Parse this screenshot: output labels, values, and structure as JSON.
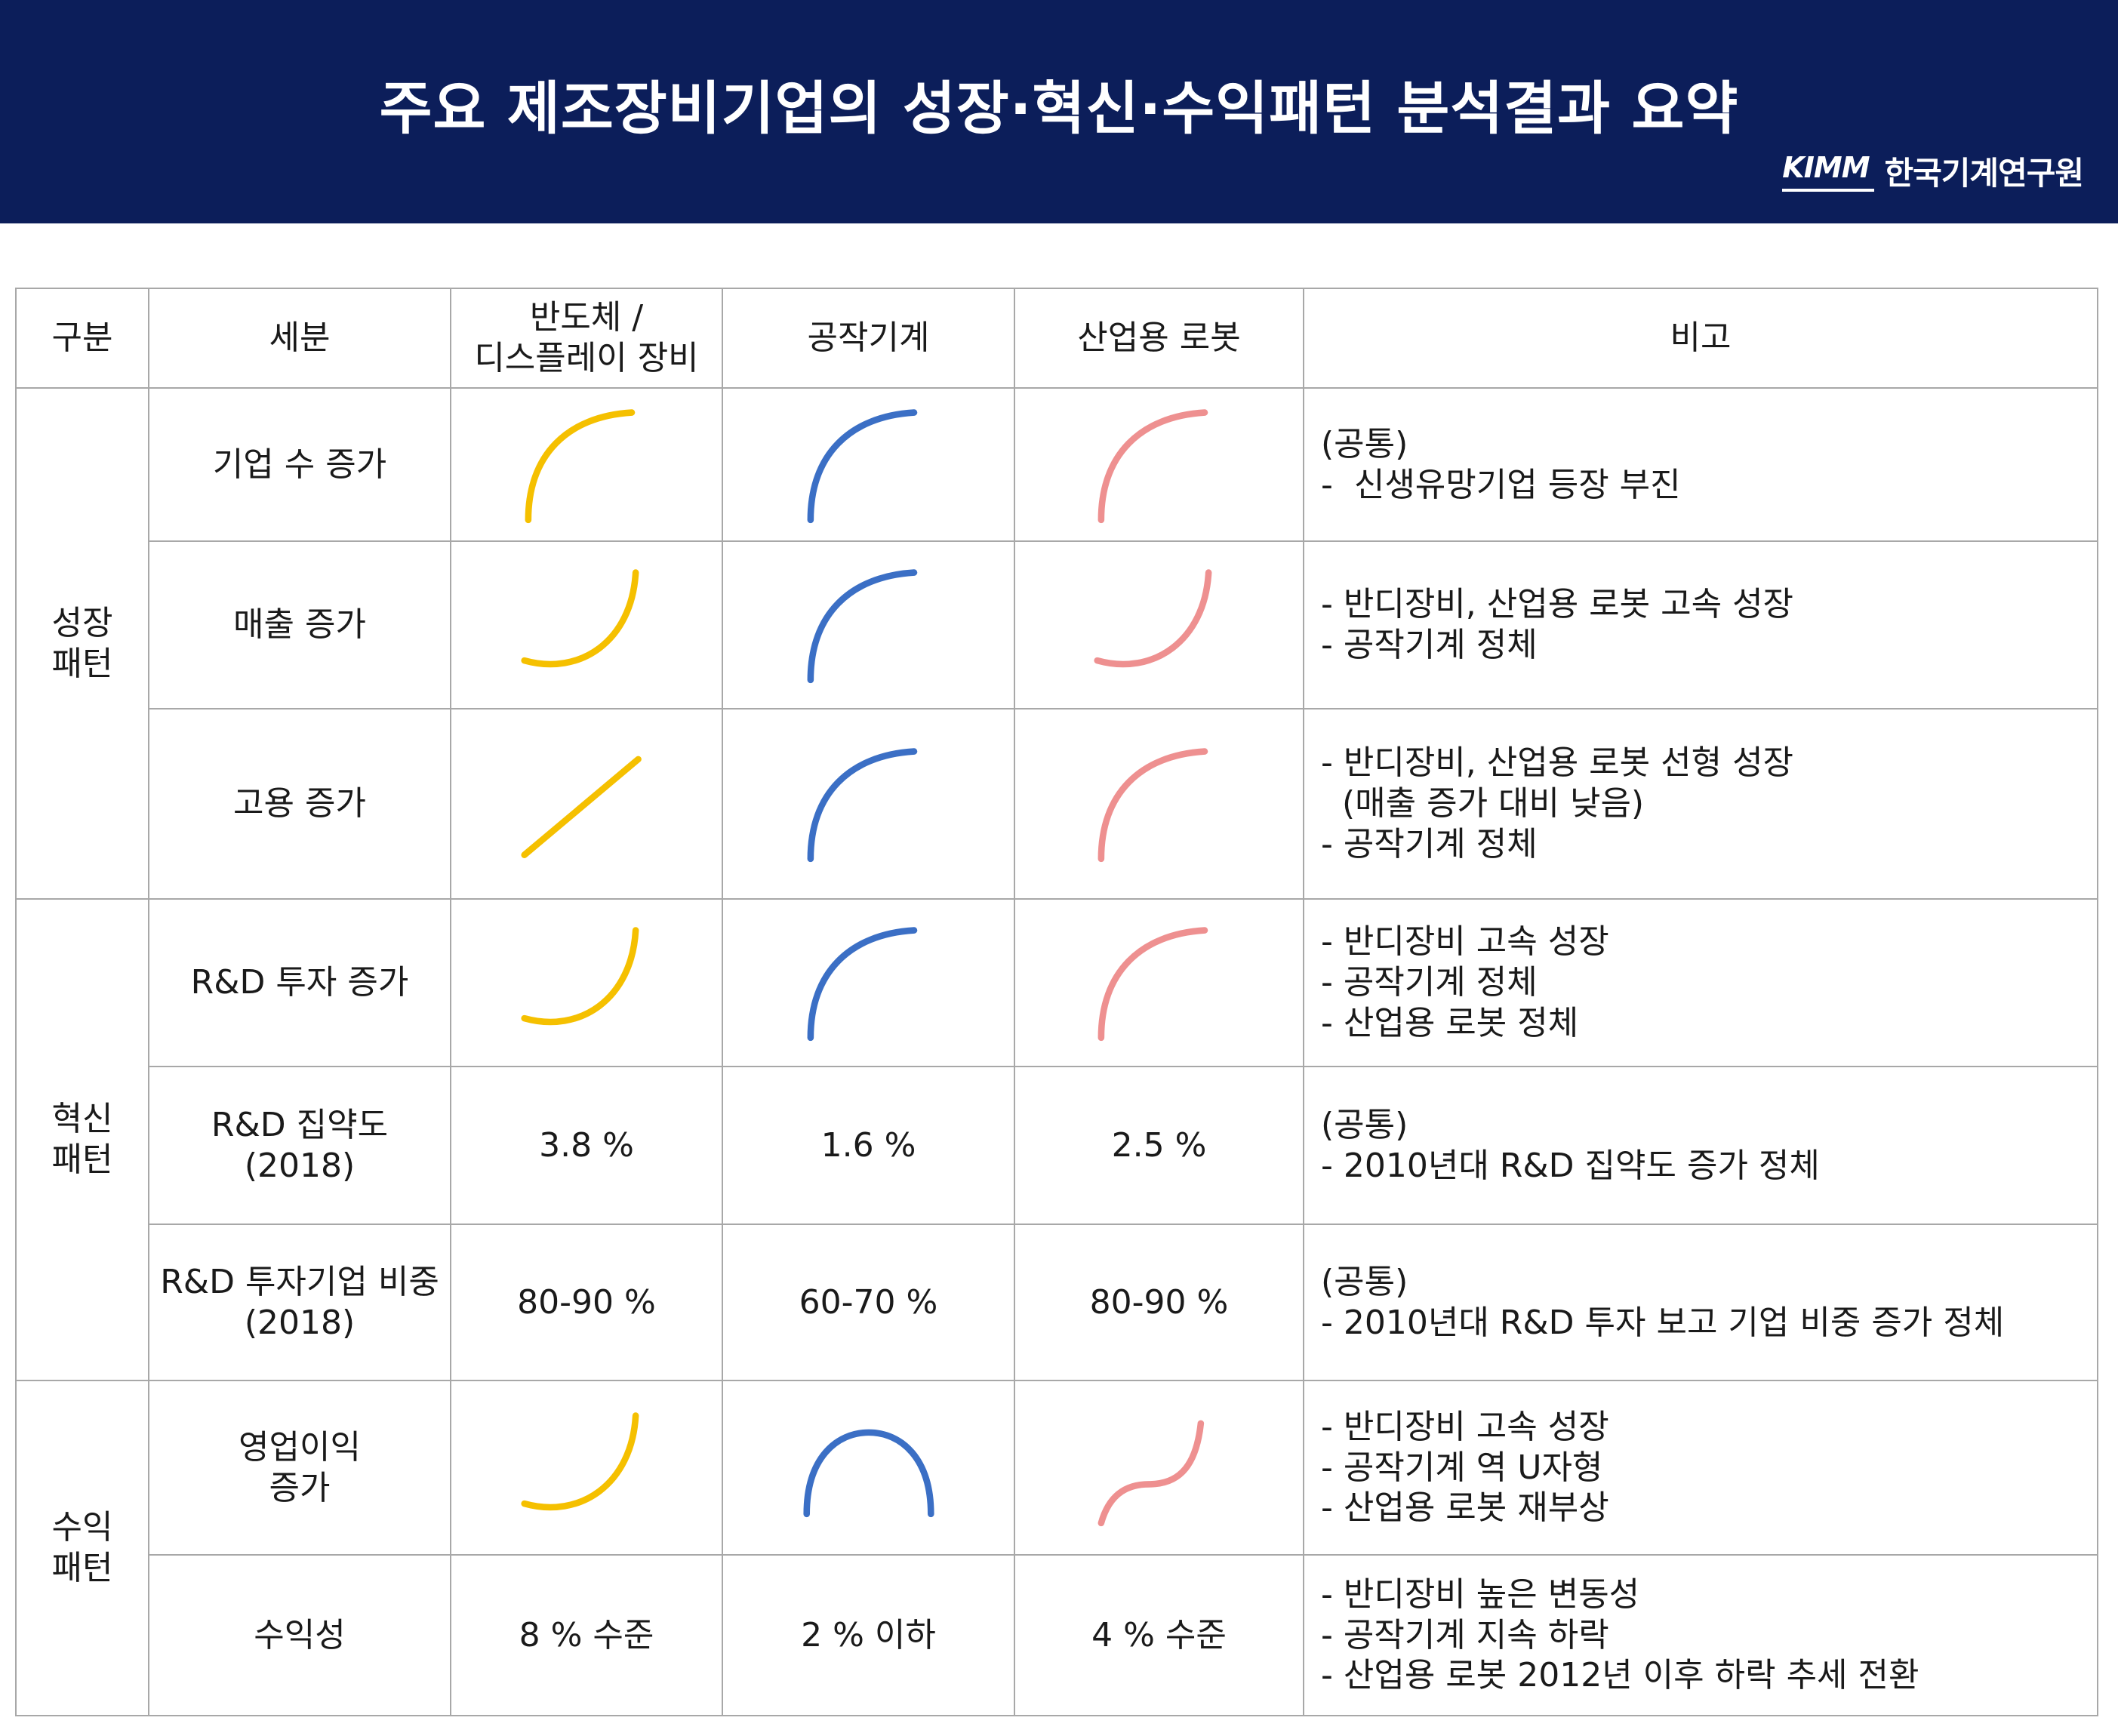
{
  "header": {
    "title": "주요 제조장비기업의 성장·혁신·수익패턴 분석결과 요약",
    "logo_mark": "KIMM",
    "logo_name": "한국기계연구원"
  },
  "colors": {
    "header_bg": "#0c1e5a",
    "semiconductor": "#f5c000",
    "machine_tools": "#3b6fc5",
    "robots": "#ee9090"
  },
  "columns": [
    "구분",
    "세분",
    "반도체 /\n디스플레이 장비",
    "공작기계",
    "산업용 로봇",
    "비고"
  ],
  "groups": {
    "growth": "성장\n패턴",
    "innovation": "혁신\n패턴",
    "profit": "수익\n패턴"
  },
  "rows": [
    {
      "label": "기업 수 증가",
      "cells": [
        {
          "icon": "concave-down-rise-curve-icon"
        },
        {
          "icon": "concave-down-rise-curve-icon"
        },
        {
          "icon": "concave-down-rise-curve-icon"
        }
      ],
      "note": [
        "(공통)",
        "-  신생유망기업 등장 부진"
      ]
    },
    {
      "label": "매출 증가",
      "cells": [
        {
          "icon": "concave-up-rise-curve-icon"
        },
        {
          "icon": "concave-down-rise-curve-icon"
        },
        {
          "icon": "concave-up-rise-curve-icon"
        }
      ],
      "note": [
        "- 반디장비, 산업용 로봇 고속 성장",
        "- 공작기계 정체"
      ]
    },
    {
      "label": "고용 증가",
      "cells": [
        {
          "icon": "linear-rise-icon"
        },
        {
          "icon": "concave-down-rise-curve-icon"
        },
        {
          "icon": "concave-down-rise-curve-icon"
        }
      ],
      "note": [
        "- 반디장비, 산업용 로봇 선형 성장",
        "  (매출 증가 대비 낮음)",
        "- 공작기계 정체"
      ]
    },
    {
      "label": "R&D 투자 증가",
      "cells": [
        {
          "icon": "concave-up-rise-curve-icon"
        },
        {
          "icon": "concave-down-rise-curve-icon"
        },
        {
          "icon": "concave-down-rise-curve-icon"
        }
      ],
      "note": [
        "- 반디장비 고속 성장",
        "- 공작기계 정체",
        "- 산업용 로봇 정체"
      ]
    },
    {
      "label": "R&D 집약도\n(2018)",
      "cells": [
        {
          "text": "3.8 %"
        },
        {
          "text": "1.6 %"
        },
        {
          "text": "2.5 %"
        }
      ],
      "note": [
        "(공통)",
        "- 2010년대 R&D 집약도 증가 정체"
      ]
    },
    {
      "label": "R&D 투자기업 비중\n(2018)",
      "cells": [
        {
          "text": "80-90 %"
        },
        {
          "text": "60-70 %"
        },
        {
          "text": "80-90 %"
        }
      ],
      "note": [
        "(공통)",
        "- 2010년대 R&D 투자 보고 기업 비중 증가 정체"
      ]
    },
    {
      "label": "영업이익\n증가",
      "cells": [
        {
          "icon": "concave-up-rise-curve-icon"
        },
        {
          "icon": "inverted-u-curve-icon"
        },
        {
          "icon": "s-curve-rise-icon"
        }
      ],
      "note": [
        "- 반디장비 고속 성장",
        "- 공작기계 역 U자형",
        "- 산업용 로봇 재부상"
      ]
    },
    {
      "label": "수익성",
      "cells": [
        {
          "text": "8 % 수준"
        },
        {
          "text": "2 % 이하"
        },
        {
          "text": "4 % 수준"
        }
      ],
      "note": [
        "- 반디장비 높은 변동성",
        "- 공작기계 지속 하락",
        "- 산업용 로봇 2012년 이후 하락 추세 전환"
      ]
    }
  ]
}
